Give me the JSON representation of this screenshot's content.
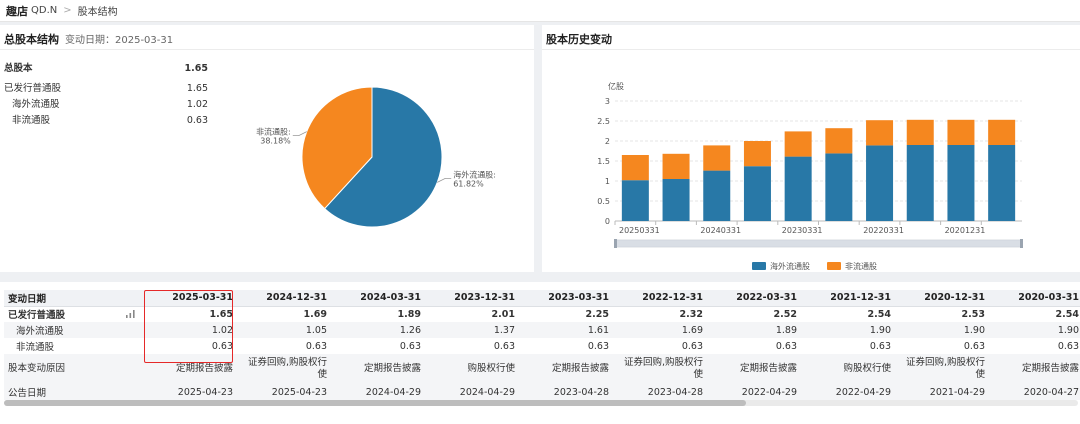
{
  "header": {
    "company_name": "趣店",
    "ticker": "QD.N",
    "breadcrumb_sep": ">",
    "section": "股本结构"
  },
  "total_share": {
    "title": "总股本结构",
    "change_date_label": "变动日期：2025-03-31",
    "rows": [
      {
        "label": "总股本",
        "value": "1.65",
        "style": "bold"
      },
      {
        "label": "已发行普通股",
        "value": "1.65",
        "style": "normal"
      },
      {
        "label": "海外流通股",
        "value": "1.02",
        "style": "indent"
      },
      {
        "label": "非流通股",
        "value": "0.63",
        "style": "indent"
      }
    ]
  },
  "chart_data": [
    {
      "type": "pie",
      "labels": [
        "海外流通股",
        "非流通股"
      ],
      "values": [
        61.82,
        38.18
      ],
      "label_texts": [
        "海外流通股:\n61.82%",
        "非流通股:\n38.18%"
      ],
      "colors": [
        "#2878a7",
        "#f5871f"
      ]
    },
    {
      "type": "bar",
      "title": "股本历史变动",
      "ylabel": "亿股",
      "stacked": true,
      "ylim": [
        0,
        3
      ],
      "yticks": [
        "0",
        "0.5",
        "1",
        "1.5",
        "2",
        "2.5",
        "3"
      ],
      "categories": [
        "20250331",
        "20241231",
        "20240331",
        "20231231",
        "20230331",
        "20221231",
        "20220331",
        "20211231",
        "20201231",
        "20200331"
      ],
      "tick_labels": [
        "20250331",
        "",
        "20240331",
        "",
        "20230331",
        "",
        "20220331",
        "",
        "20201231",
        ""
      ],
      "series": [
        {
          "name": "海外流通股",
          "color": "#2878a7",
          "values": [
            1.02,
            1.05,
            1.26,
            1.37,
            1.61,
            1.69,
            1.89,
            1.9,
            1.9,
            1.9
          ]
        },
        {
          "name": "非流通股",
          "color": "#f5871f",
          "values": [
            0.63,
            0.63,
            0.63,
            0.63,
            0.63,
            0.63,
            0.63,
            0.63,
            0.63,
            0.63
          ]
        }
      ],
      "legend": "bottom-center"
    }
  ],
  "table": {
    "header_label": "变动日期",
    "dates": [
      "2025-03-31",
      "2024-12-31",
      "2024-03-31",
      "2023-12-31",
      "2023-03-31",
      "2022-12-31",
      "2022-03-31",
      "2021-12-31",
      "2020-12-31",
      "2020-03-31"
    ],
    "rows": [
      {
        "label": "已发行普通股",
        "style": "bold",
        "has_chart_icon": true,
        "values": [
          "1.65",
          "1.69",
          "1.89",
          "2.01",
          "2.25",
          "2.32",
          "2.52",
          "2.54",
          "2.53",
          "2.54"
        ]
      },
      {
        "label": "海外流通股",
        "style": "indent",
        "values": [
          "1.02",
          "1.05",
          "1.26",
          "1.37",
          "1.61",
          "1.69",
          "1.89",
          "1.90",
          "1.90",
          "1.90"
        ]
      },
      {
        "label": "非流通股",
        "style": "indent",
        "values": [
          "0.63",
          "0.63",
          "0.63",
          "0.63",
          "0.63",
          "0.63",
          "0.63",
          "0.63",
          "0.63",
          "0.63"
        ]
      },
      {
        "label": "股本变动原因",
        "style": "two",
        "values": [
          "定期报告披露",
          "证券回购,购股权行使",
          "定期报告披露",
          "购股权行使",
          "定期报告披露",
          "证券回购,购股权行使",
          "定期报告披露",
          "购股权行使",
          "证券回购,购股权行使",
          "定期报告披露"
        ]
      },
      {
        "label": "公告日期",
        "style": "normal",
        "values": [
          "2025-04-23",
          "2025-04-23",
          "2024-04-29",
          "2024-04-29",
          "2023-04-28",
          "2023-04-28",
          "2022-04-29",
          "2022-04-29",
          "2021-04-29",
          "2020-04-27"
        ]
      }
    ],
    "highlight_color": "#e52929"
  }
}
